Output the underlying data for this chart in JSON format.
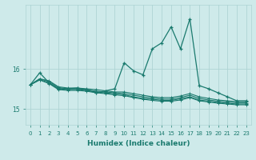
{
  "xlabel": "Humidex (Indice chaleur)",
  "bg_color": "#ceeaea",
  "grid_color": "#aed4d4",
  "line_color": "#1a7a6e",
  "xlim": [
    -0.5,
    23.5
  ],
  "ylim": [
    14.6,
    17.6
  ],
  "yticks": [
    15,
    16
  ],
  "xticks": [
    0,
    1,
    2,
    3,
    4,
    5,
    6,
    7,
    8,
    9,
    10,
    11,
    12,
    13,
    14,
    15,
    16,
    17,
    18,
    19,
    20,
    21,
    22,
    23
  ],
  "series": [
    [
      15.6,
      15.9,
      15.65,
      15.5,
      15.5,
      15.52,
      15.48,
      15.4,
      15.45,
      15.5,
      16.15,
      15.95,
      15.85,
      16.5,
      16.65,
      17.05,
      16.5,
      17.25,
      15.58,
      15.5,
      15.4,
      15.3,
      15.2,
      15.2
    ],
    [
      15.6,
      15.75,
      15.7,
      15.55,
      15.52,
      15.52,
      15.5,
      15.48,
      15.45,
      15.42,
      15.42,
      15.38,
      15.34,
      15.3,
      15.28,
      15.28,
      15.32,
      15.38,
      15.3,
      15.26,
      15.22,
      15.2,
      15.18,
      15.18
    ],
    [
      15.6,
      15.75,
      15.68,
      15.53,
      15.5,
      15.5,
      15.48,
      15.44,
      15.42,
      15.4,
      15.38,
      15.34,
      15.3,
      15.27,
      15.24,
      15.24,
      15.28,
      15.34,
      15.26,
      15.22,
      15.19,
      15.17,
      15.15,
      15.15
    ],
    [
      15.6,
      15.73,
      15.65,
      15.5,
      15.48,
      15.48,
      15.46,
      15.42,
      15.4,
      15.37,
      15.35,
      15.3,
      15.26,
      15.24,
      15.21,
      15.21,
      15.25,
      15.3,
      15.22,
      15.19,
      15.16,
      15.14,
      15.12,
      15.12
    ],
    [
      15.6,
      15.72,
      15.63,
      15.48,
      15.46,
      15.46,
      15.44,
      15.4,
      15.38,
      15.35,
      15.33,
      15.28,
      15.24,
      15.21,
      15.19,
      15.19,
      15.22,
      15.28,
      15.2,
      15.17,
      15.14,
      15.12,
      15.1,
      15.1
    ]
  ]
}
